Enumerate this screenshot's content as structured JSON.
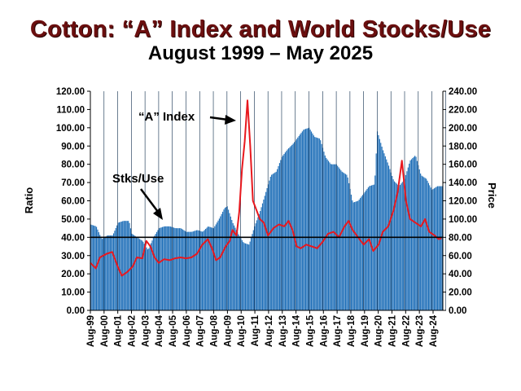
{
  "page": {
    "title": "Cotton:  “A” Index and World Stocks/Use",
    "subtitle": "August 1999 – May 2025"
  },
  "chart_data": {
    "type": "bar+line",
    "title": "Cotton:  “A” Index and World Stocks/Use",
    "subtitle": "August 1999 – May 2025",
    "ylabel_left": "Ratio",
    "ylabel_right": "Price",
    "ylim_left": [
      0,
      120
    ],
    "ylim_right": [
      0,
      240
    ],
    "yticks_left": [
      "0.00",
      "10.00",
      "20.00",
      "30.00",
      "40.00",
      "50.00",
      "60.00",
      "70.00",
      "80.00",
      "90.00",
      "100.00",
      "110.00",
      "120.00"
    ],
    "yticks_right": [
      "0.00",
      "20.00",
      "40.00",
      "60.00",
      "80.00",
      "100.00",
      "120.00",
      "140.00",
      "160.00",
      "180.00",
      "200.00",
      "220.00",
      "240.00"
    ],
    "xticks": [
      "Aug-99",
      "Aug-00",
      "Aug-01",
      "Aug-02",
      "Aug-03",
      "Aug-04",
      "Aug-05",
      "Aug-06",
      "Aug-07",
      "Aug-08",
      "Aug-09",
      "Aug-10",
      "Aug-11",
      "Aug-12",
      "Aug-13",
      "Aug-14",
      "Aug-15",
      "Aug-16",
      "Aug-17",
      "Aug-18",
      "Aug-19",
      "Aug-20",
      "Aug-21",
      "Aug-22",
      "Aug-23",
      "Aug-24"
    ],
    "reference_line_ratio": 40,
    "annotations": [
      {
        "text": "“A” Index",
        "points_to": "A Index peak 2011"
      },
      {
        "text": "Stks/Use",
        "points_to": "stocks-to-use bars 2005"
      }
    ],
    "series": [
      {
        "name": "Stks/Use",
        "type": "bar",
        "axis": "left",
        "color": "#1f6fb8",
        "points": [
          [
            1999.6,
            47
          ],
          [
            2000.0,
            46
          ],
          [
            2000.4,
            39
          ],
          [
            2000.8,
            41
          ],
          [
            2001.2,
            41
          ],
          [
            2001.6,
            48
          ],
          [
            2002.0,
            49
          ],
          [
            2002.4,
            49
          ],
          [
            2002.6,
            42
          ],
          [
            2003.0,
            40
          ],
          [
            2003.4,
            38
          ],
          [
            2003.8,
            33
          ],
          [
            2004.2,
            40
          ],
          [
            2004.6,
            45
          ],
          [
            2005.0,
            46
          ],
          [
            2005.4,
            46
          ],
          [
            2005.8,
            45
          ],
          [
            2006.2,
            45
          ],
          [
            2006.6,
            43
          ],
          [
            2007.0,
            43
          ],
          [
            2007.4,
            44
          ],
          [
            2007.8,
            43
          ],
          [
            2008.2,
            46
          ],
          [
            2008.6,
            45
          ],
          [
            2009.0,
            50
          ],
          [
            2009.4,
            56
          ],
          [
            2009.6,
            57
          ],
          [
            2010.0,
            48
          ],
          [
            2010.4,
            42
          ],
          [
            2010.8,
            37
          ],
          [
            2011.2,
            36
          ],
          [
            2011.6,
            46
          ],
          [
            2012.0,
            54
          ],
          [
            2012.4,
            64
          ],
          [
            2012.8,
            74
          ],
          [
            2013.2,
            76
          ],
          [
            2013.6,
            84
          ],
          [
            2014.0,
            88
          ],
          [
            2014.4,
            91
          ],
          [
            2014.8,
            95
          ],
          [
            2015.2,
            99
          ],
          [
            2015.6,
            100
          ],
          [
            2016.0,
            95
          ],
          [
            2016.4,
            94
          ],
          [
            2016.8,
            84
          ],
          [
            2017.2,
            80
          ],
          [
            2017.6,
            80
          ],
          [
            2018.0,
            76
          ],
          [
            2018.4,
            74
          ],
          [
            2018.8,
            59
          ],
          [
            2019.2,
            60
          ],
          [
            2019.6,
            64
          ],
          [
            2020.0,
            68
          ],
          [
            2020.4,
            69
          ],
          [
            2020.6,
            98
          ],
          [
            2021.0,
            88
          ],
          [
            2021.4,
            80
          ],
          [
            2021.8,
            71
          ],
          [
            2022.2,
            68
          ],
          [
            2022.6,
            72
          ],
          [
            2023.0,
            82
          ],
          [
            2023.4,
            85
          ],
          [
            2023.8,
            74
          ],
          [
            2024.2,
            72
          ],
          [
            2024.6,
            66
          ],
          [
            2025.0,
            68
          ],
          [
            2025.3,
            68
          ]
        ]
      },
      {
        "name": "“A” Index",
        "type": "line",
        "axis": "right",
        "color": "#e8181e",
        "points": [
          [
            1999.6,
            52
          ],
          [
            2000.0,
            46
          ],
          [
            2000.3,
            58
          ],
          [
            2000.8,
            62
          ],
          [
            2001.2,
            64
          ],
          [
            2001.6,
            48
          ],
          [
            2001.9,
            38
          ],
          [
            2002.3,
            42
          ],
          [
            2002.7,
            48
          ],
          [
            2003.0,
            58
          ],
          [
            2003.4,
            57
          ],
          [
            2003.7,
            76
          ],
          [
            2004.0,
            70
          ],
          [
            2004.3,
            58
          ],
          [
            2004.6,
            52
          ],
          [
            2005.0,
            56
          ],
          [
            2005.4,
            55
          ],
          [
            2005.8,
            57
          ],
          [
            2006.2,
            58
          ],
          [
            2006.6,
            57
          ],
          [
            2007.0,
            58
          ],
          [
            2007.4,
            62
          ],
          [
            2007.8,
            72
          ],
          [
            2008.2,
            78
          ],
          [
            2008.5,
            68
          ],
          [
            2008.8,
            55
          ],
          [
            2009.1,
            58
          ],
          [
            2009.5,
            70
          ],
          [
            2009.8,
            76
          ],
          [
            2010.0,
            88
          ],
          [
            2010.3,
            82
          ],
          [
            2010.5,
            108
          ],
          [
            2010.7,
            155
          ],
          [
            2010.9,
            185
          ],
          [
            2011.1,
            230
          ],
          [
            2011.3,
            180
          ],
          [
            2011.5,
            120
          ],
          [
            2011.8,
            108
          ],
          [
            2012.0,
            100
          ],
          [
            2012.3,
            96
          ],
          [
            2012.6,
            82
          ],
          [
            2013.0,
            90
          ],
          [
            2013.4,
            94
          ],
          [
            2013.8,
            92
          ],
          [
            2014.1,
            98
          ],
          [
            2014.4,
            88
          ],
          [
            2014.7,
            70
          ],
          [
            2015.0,
            68
          ],
          [
            2015.4,
            72
          ],
          [
            2015.8,
            70
          ],
          [
            2016.2,
            68
          ],
          [
            2016.6,
            75
          ],
          [
            2017.0,
            84
          ],
          [
            2017.4,
            86
          ],
          [
            2017.8,
            80
          ],
          [
            2018.2,
            92
          ],
          [
            2018.5,
            98
          ],
          [
            2018.8,
            88
          ],
          [
            2019.2,
            80
          ],
          [
            2019.6,
            72
          ],
          [
            2020.0,
            78
          ],
          [
            2020.3,
            65
          ],
          [
            2020.7,
            72
          ],
          [
            2021.0,
            86
          ],
          [
            2021.4,
            92
          ],
          [
            2021.8,
            110
          ],
          [
            2022.1,
            130
          ],
          [
            2022.4,
            164
          ],
          [
            2022.7,
            120
          ],
          [
            2023.0,
            100
          ],
          [
            2023.4,
            96
          ],
          [
            2023.8,
            92
          ],
          [
            2024.1,
            100
          ],
          [
            2024.4,
            86
          ],
          [
            2024.8,
            82
          ],
          [
            2025.1,
            78
          ],
          [
            2025.3,
            79
          ]
        ]
      }
    ]
  }
}
